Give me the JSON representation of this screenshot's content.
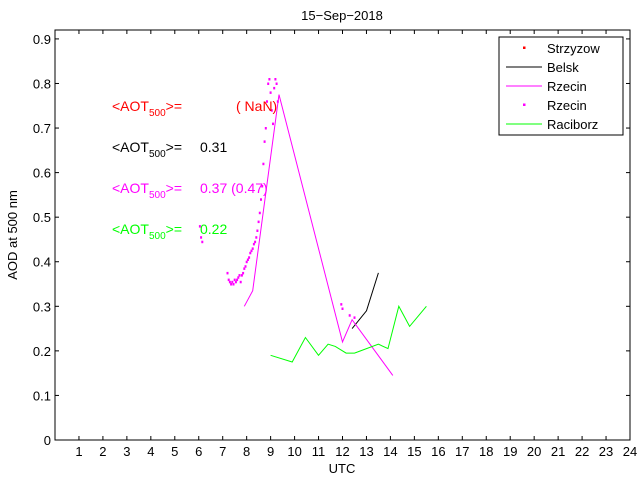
{
  "chart_data": {
    "type": "line",
    "title": "15−Sep−2018",
    "xlabel": "UTC",
    "ylabel": "AOD at 500 nm",
    "xlim": [
      0,
      24
    ],
    "ylim": [
      0,
      0.92
    ],
    "xticks": [
      "1",
      "2",
      "3",
      "4",
      "5",
      "6",
      "7",
      "8",
      "9",
      "10",
      "11",
      "12",
      "13",
      "14",
      "15",
      "16",
      "17",
      "18",
      "19",
      "20",
      "21",
      "22",
      "23",
      "24"
    ],
    "yticks": [
      "0",
      "0.1",
      "0.2",
      "0.3",
      "0.4",
      "0.5",
      "0.6",
      "0.7",
      "0.8",
      "0.9"
    ],
    "grid": false,
    "legend_position": "top-right",
    "annotations": [
      {
        "prefix": "<AOT",
        "sub": "500",
        "suffix": ">=",
        "value": "( NaN)",
        "color": "#ff0000"
      },
      {
        "prefix": "<AOT",
        "sub": "500",
        "suffix": ">=",
        "value": "0.31",
        "color": "#000000"
      },
      {
        "prefix": "<AOT",
        "sub": "500",
        "suffix": ">=",
        "value": "0.37 (0.47)",
        "color": "#ff00ff"
      },
      {
        "prefix": "<AOT",
        "sub": "500",
        "suffix": ">=",
        "value": "0.22",
        "color": "#00ff00"
      }
    ],
    "series": [
      {
        "name": "Strzyzow",
        "style": "points",
        "color": "#ff0000",
        "x": [],
        "y": []
      },
      {
        "name": "Belsk",
        "style": "line",
        "color": "#000000",
        "x": [
          12.4,
          13.0,
          13.5
        ],
        "y": [
          0.25,
          0.29,
          0.375
        ]
      },
      {
        "name": "Rzecin",
        "style": "line",
        "color": "#ff00ff",
        "x": [
          7.9,
          8.25,
          9.35,
          12.0,
          12.4,
          14.1
        ],
        "y": [
          0.3,
          0.335,
          0.775,
          0.22,
          0.27,
          0.145
        ]
      },
      {
        "name": "Rzecin",
        "style": "points",
        "color": "#ff00ff",
        "x": [
          6.05,
          6.1,
          6.15,
          7.2,
          7.25,
          7.3,
          7.35,
          7.4,
          7.45,
          7.5,
          7.55,
          7.6,
          7.65,
          7.7,
          7.75,
          7.8,
          7.85,
          7.9,
          7.95,
          8.0,
          8.05,
          8.1,
          8.15,
          8.2,
          8.25,
          8.3,
          8.35,
          8.4,
          8.45,
          8.5,
          8.55,
          8.6,
          8.65,
          8.7,
          8.75,
          8.8,
          8.85,
          8.9,
          8.95,
          9.0,
          9.05,
          9.1,
          9.15,
          9.2,
          9.25,
          9.3,
          11.95,
          12.0,
          12.3,
          12.5
        ],
        "y": [
          0.48,
          0.455,
          0.445,
          0.375,
          0.36,
          0.355,
          0.35,
          0.355,
          0.35,
          0.36,
          0.355,
          0.36,
          0.365,
          0.37,
          0.355,
          0.37,
          0.375,
          0.385,
          0.39,
          0.4,
          0.405,
          0.41,
          0.42,
          0.425,
          0.43,
          0.44,
          0.445,
          0.455,
          0.47,
          0.49,
          0.51,
          0.54,
          0.57,
          0.62,
          0.67,
          0.7,
          0.76,
          0.8,
          0.81,
          0.78,
          0.74,
          0.71,
          0.79,
          0.81,
          0.8,
          0.76,
          0.305,
          0.295,
          0.28,
          0.275
        ]
      },
      {
        "name": "Raciborz",
        "style": "line",
        "color": "#00ff00",
        "x": [
          9.0,
          9.9,
          10.45,
          11.0,
          11.4,
          11.7,
          12.15,
          12.5,
          12.75,
          13.5,
          13.9,
          14.35,
          14.8,
          15.5
        ],
        "y": [
          0.19,
          0.175,
          0.23,
          0.19,
          0.215,
          0.21,
          0.195,
          0.195,
          0.2,
          0.215,
          0.205,
          0.3,
          0.255,
          0.3
        ]
      }
    ]
  }
}
